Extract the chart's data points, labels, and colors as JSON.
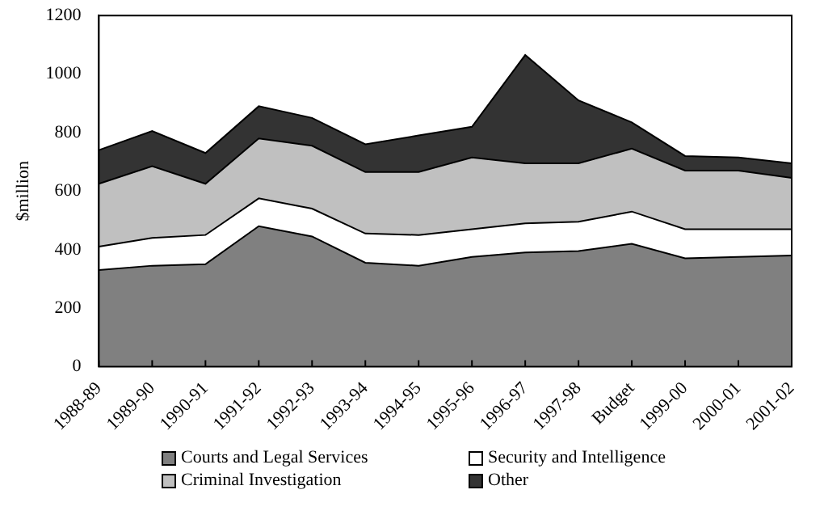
{
  "chart_data": {
    "type": "area",
    "stacked": true,
    "ylabel": "$million",
    "categories": [
      "1988-89",
      "1989-90",
      "1990-91",
      "1991-92",
      "1992-93",
      "1993-94",
      "1994-95",
      "1995-96",
      "1996-97",
      "1997-98",
      "Budget",
      "1999-00",
      "2000-01",
      "2001-02"
    ],
    "series": [
      {
        "name": "Courts and Legal Services",
        "color": "#808080",
        "values": [
          330,
          345,
          350,
          480,
          445,
          355,
          345,
          375,
          390,
          395,
          420,
          370,
          375,
          380
        ]
      },
      {
        "name": "Security and Intelligence",
        "color": "#ffffff",
        "values": [
          80,
          95,
          100,
          95,
          95,
          100,
          105,
          95,
          100,
          100,
          110,
          100,
          95,
          90
        ]
      },
      {
        "name": "Criminal Investigation",
        "color": "#c0c0c0",
        "values": [
          215,
          245,
          175,
          205,
          215,
          210,
          215,
          245,
          205,
          200,
          215,
          200,
          200,
          175
        ]
      },
      {
        "name": "Other",
        "color": "#333333",
        "values": [
          115,
          120,
          105,
          110,
          95,
          95,
          125,
          105,
          370,
          215,
          90,
          50,
          45,
          50
        ]
      }
    ],
    "ylim": [
      0,
      1200
    ],
    "yticks": [
      0,
      200,
      400,
      600,
      800,
      1000,
      1200
    ],
    "grid": false,
    "legend": "bottom"
  }
}
